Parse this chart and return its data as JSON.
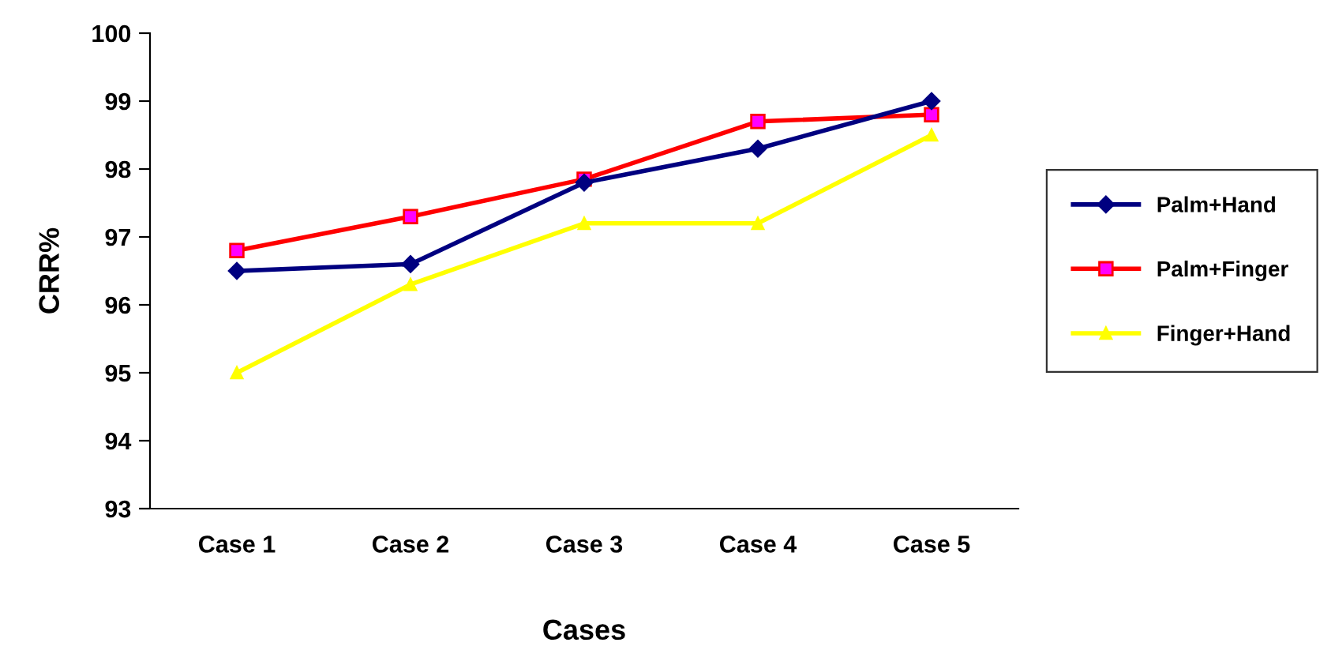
{
  "chart_data": {
    "type": "line",
    "xlabel": "Cases",
    "ylabel": "CRR%",
    "categories": [
      "Case 1",
      "Case 2",
      "Case 3",
      "Case 4",
      "Case 5"
    ],
    "series": [
      {
        "name": "Palm+Hand",
        "color": "#000080",
        "marker": "diamond",
        "values": [
          96.5,
          96.6,
          97.8,
          98.3,
          99.0
        ]
      },
      {
        "name": "Palm+Finger",
        "color": "#ff0000",
        "marker": "square",
        "values": [
          96.8,
          97.3,
          97.85,
          98.7,
          98.8
        ]
      },
      {
        "name": "Finger+Hand",
        "color": "#ffff00",
        "marker": "triangle",
        "values": [
          95.0,
          96.3,
          97.2,
          97.2,
          98.5
        ]
      }
    ],
    "ylim": [
      93,
      100
    ],
    "yticks": [
      93,
      94,
      95,
      96,
      97,
      98,
      99,
      100
    ],
    "grid": false,
    "legend": "right",
    "line_style": "solid"
  }
}
